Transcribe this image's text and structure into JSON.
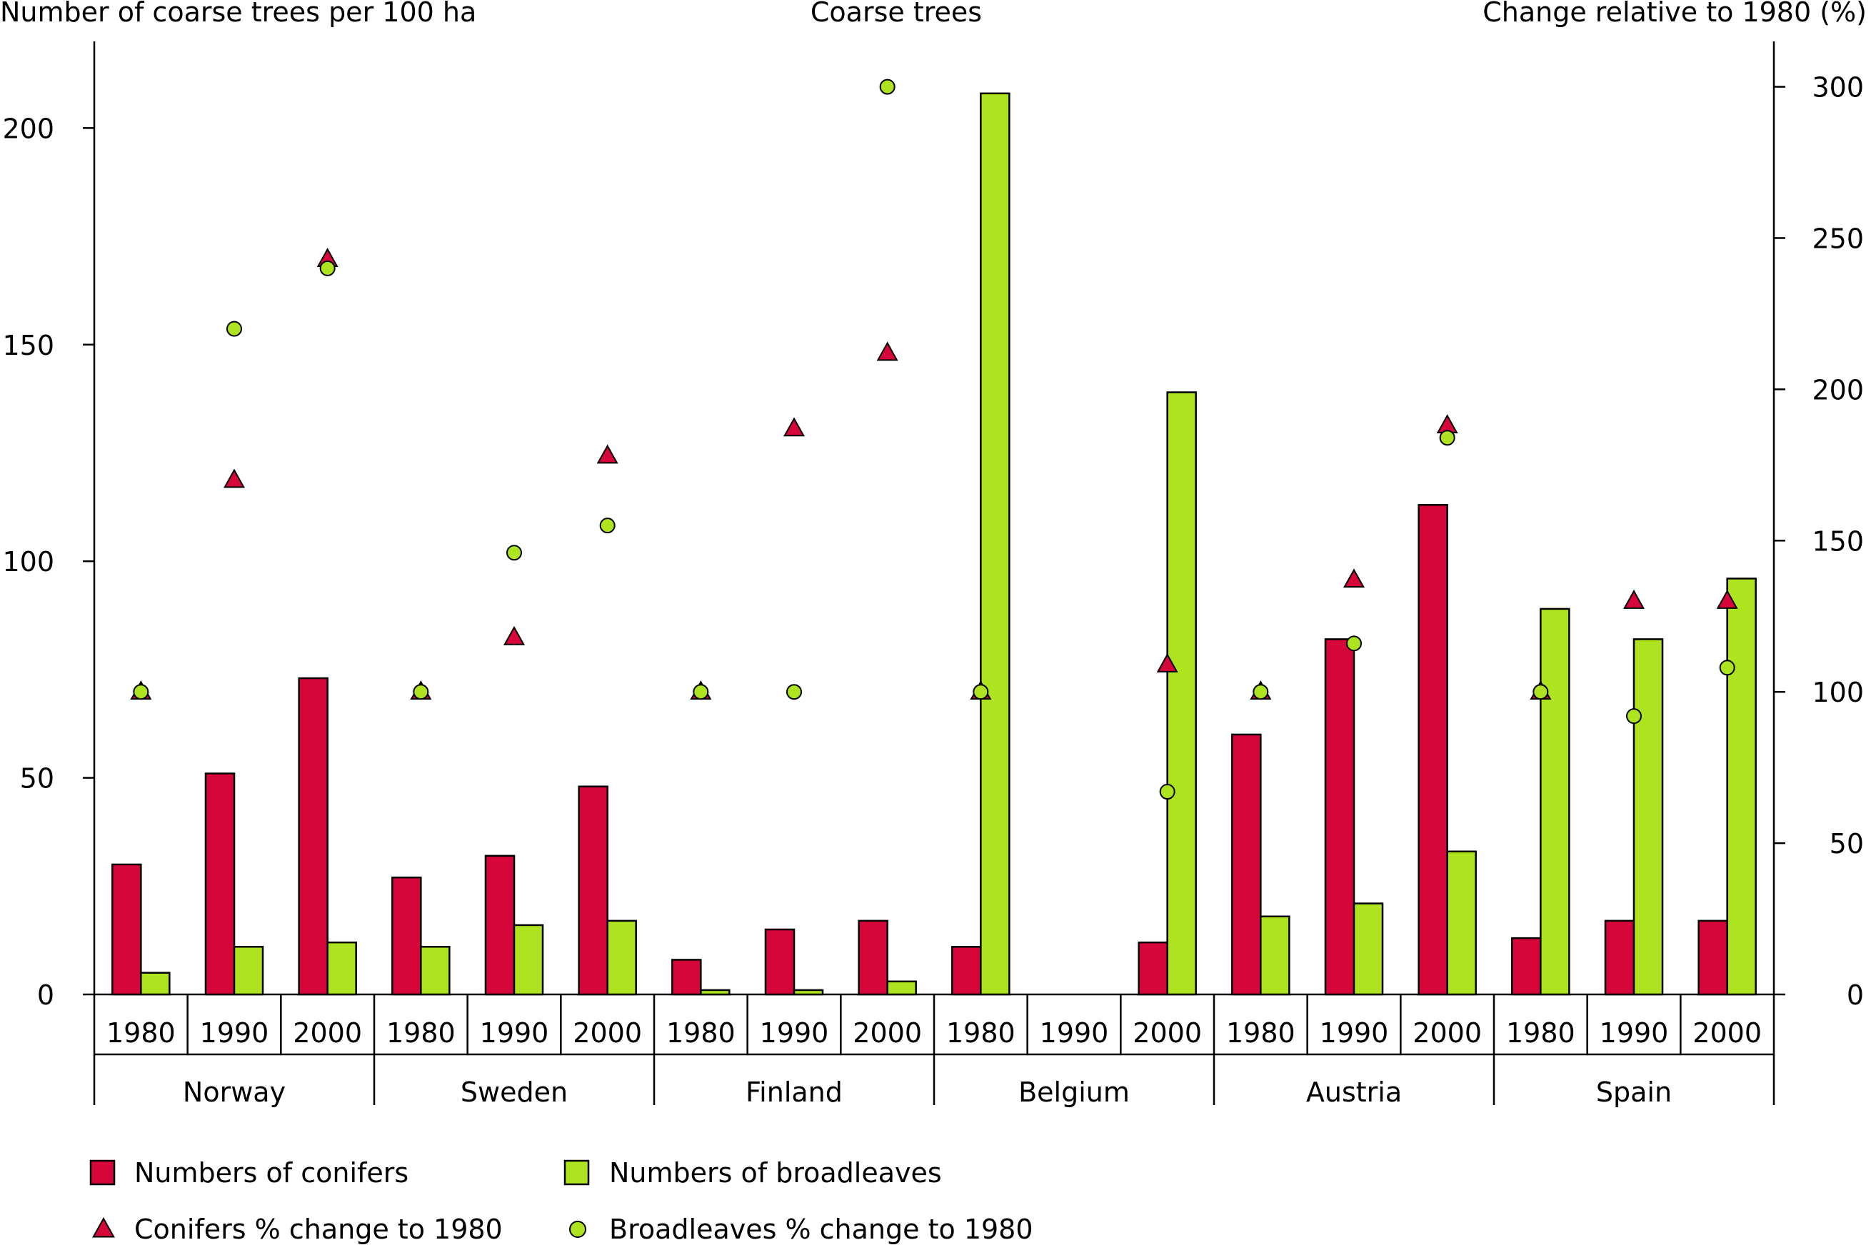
{
  "chart_data": {
    "type": "bar",
    "title": "Coarse trees",
    "left_axis_title": "Number of coarse trees per 100 ha",
    "right_axis_title": "Change relative to 1980 (%)",
    "left_ylim": [
      0,
      220
    ],
    "left_ticks": [
      0,
      50,
      100,
      150,
      200
    ],
    "right_ylim": [
      0,
      315
    ],
    "right_ticks": [
      0,
      50,
      100,
      150,
      200,
      250,
      300
    ],
    "grid": false,
    "legend_position": "bottom",
    "colors": {
      "conifers": "#D6063A",
      "broadleaves": "#AEE31F",
      "outline": "#000000"
    },
    "groups": [
      "Norway",
      "Sweden",
      "Finland",
      "Belgium",
      "Austria",
      "Spain"
    ],
    "years": [
      "1980",
      "1990",
      "2000"
    ],
    "series": [
      {
        "name": "Numbers of conifers",
        "kind": "bar",
        "axis": "left",
        "values": [
          30,
          51,
          73,
          27,
          32,
          48,
          8,
          15,
          17,
          11,
          null,
          12,
          60,
          82,
          113,
          13,
          17,
          17
        ]
      },
      {
        "name": "Numbers of broadleaves",
        "kind": "bar",
        "axis": "left",
        "values": [
          5,
          11,
          12,
          11,
          16,
          17,
          1,
          1,
          3,
          208,
          null,
          139,
          18,
          21,
          33,
          89,
          82,
          96
        ]
      },
      {
        "name": "Conifers % change to 1980",
        "kind": "marker-triangle",
        "axis": "right",
        "values": [
          100,
          170,
          243,
          100,
          118,
          178,
          100,
          187,
          212,
          100,
          null,
          109,
          100,
          137,
          188,
          100,
          130,
          130
        ]
      },
      {
        "name": "Broadleaves % change to 1980",
        "kind": "marker-circle",
        "axis": "right",
        "values": [
          100,
          220,
          240,
          100,
          146,
          155,
          100,
          100,
          300,
          100,
          null,
          67,
          100,
          116,
          184,
          100,
          92,
          108
        ]
      }
    ]
  }
}
